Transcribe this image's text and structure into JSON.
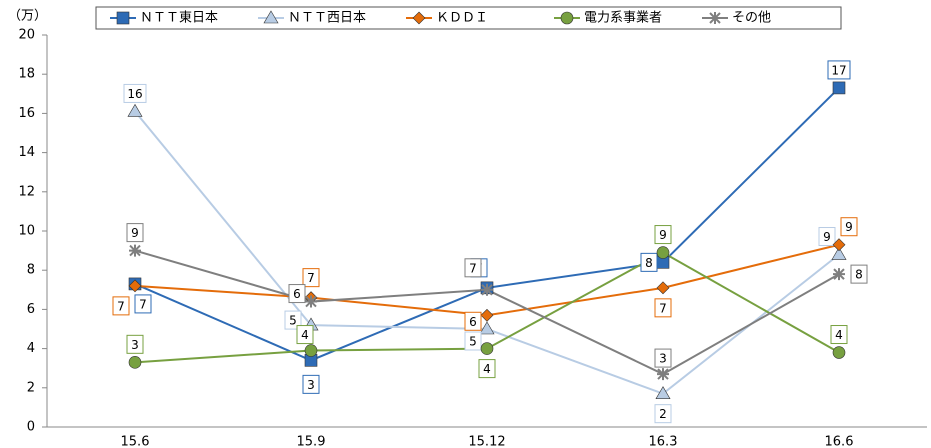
{
  "chart_data": {
    "type": "line",
    "y_unit": "（万）",
    "categories": [
      "15.6",
      "15.9",
      "15.12",
      "16.3",
      "16.6"
    ],
    "ylim": [
      0,
      20
    ],
    "yticks": [
      0,
      2,
      4,
      6,
      8,
      10,
      12,
      14,
      16,
      18,
      20
    ],
    "grid": false,
    "legend": "top",
    "series": [
      {
        "name": "ＮＴＴ東日本",
        "color": "#2e6bb5",
        "marker": "square",
        "values": [
          7.3,
          3.4,
          7.1,
          8.4,
          17.3
        ],
        "value_labels": [
          "7",
          "3",
          "7",
          "8",
          "17"
        ]
      },
      {
        "name": "ＮＴＴ西日本",
        "color": "#b8cce4",
        "marker": "triangle",
        "values": [
          16.1,
          5.2,
          5.0,
          1.7,
          8.8
        ],
        "value_labels": [
          "16",
          "5",
          "5",
          "2",
          "9"
        ]
      },
      {
        "name": "ＫＤＤＩ",
        "color": "#e46c0a",
        "marker": "diamond",
        "values": [
          7.2,
          6.6,
          5.7,
          7.1,
          9.3
        ],
        "value_labels": [
          "7",
          "7",
          "6",
          "7",
          "9"
        ]
      },
      {
        "name": "電力系事業者",
        "color": "#77a040",
        "marker": "circle",
        "values": [
          3.3,
          3.9,
          4.0,
          8.9,
          3.8
        ],
        "value_labels": [
          "3",
          "4",
          "4",
          "9",
          "4"
        ]
      },
      {
        "name": "その他",
        "color": "#7f7f7f",
        "marker": "star",
        "values": [
          9.0,
          6.4,
          7.0,
          2.7,
          7.8
        ],
        "value_labels": [
          "9",
          "6",
          "7",
          "3",
          "8"
        ]
      }
    ]
  }
}
